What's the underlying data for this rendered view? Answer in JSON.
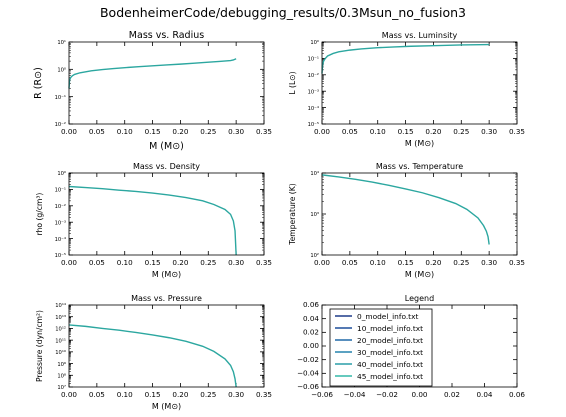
{
  "figure": {
    "suptitle": "BodenheimerCode/debugging_results/0.3Msun_no_fusion3",
    "colors": {
      "background": "#ffffff",
      "axes": "#000000"
    }
  },
  "chart_data": [
    {
      "type": "line",
      "title": "Mass vs. Radius",
      "xlabel": "M ($M_{\\odot}$)",
      "ylabel": "R ($R_{\\odot}$)",
      "xlim": [
        0,
        0.35
      ],
      "ylim": [
        0.01,
        10
      ],
      "yscale": "log",
      "xticks": [
        "0.00",
        "0.05",
        "0.10",
        "0.15",
        "0.20",
        "0.25",
        "0.30",
        "0.35"
      ],
      "yticks": [
        {
          "v": 0.01,
          "label": "10⁻²"
        },
        {
          "v": 0.1,
          "label": "10⁻¹"
        },
        {
          "v": 1,
          "label": "10⁰"
        },
        {
          "v": 10,
          "label": "10¹"
        }
      ],
      "series_color": "#2ca7a0",
      "x": [
        0.0,
        0.001,
        0.003,
        0.006,
        0.01,
        0.02,
        0.04,
        0.06,
        0.08,
        0.1,
        0.125,
        0.15,
        0.175,
        0.2,
        0.225,
        0.25,
        0.27,
        0.29,
        0.295,
        0.3
      ],
      "y": [
        0.2,
        0.4,
        0.5,
        0.58,
        0.65,
        0.75,
        0.88,
        0.98,
        1.07,
        1.15,
        1.25,
        1.35,
        1.45,
        1.55,
        1.68,
        1.82,
        1.95,
        2.1,
        2.2,
        2.45
      ]
    },
    {
      "type": "line",
      "title": "Mass vs. Luminsity",
      "xlabel": "M ($M_{\\odot}$)",
      "ylabel": "L ($L_{\\odot}$)",
      "xlim": [
        0,
        0.35
      ],
      "ylim": [
        1e-05,
        1
      ],
      "yscale": "log",
      "xticks": [
        "0.00",
        "0.05",
        "0.10",
        "0.15",
        "0.20",
        "0.25",
        "0.30",
        "0.35"
      ],
      "yticks": [
        {
          "v": 1e-05,
          "label": "10⁻⁵"
        },
        {
          "v": 0.0001,
          "label": "10⁻⁴"
        },
        {
          "v": 0.001,
          "label": "10⁻³"
        },
        {
          "v": 0.01,
          "label": "10⁻²"
        },
        {
          "v": 0.1,
          "label": "10⁻¹"
        },
        {
          "v": 1,
          "label": "10⁰"
        }
      ],
      "series_color": "#2ca7a0",
      "x": [
        0.0,
        0.001,
        0.003,
        0.006,
        0.01,
        0.02,
        0.03,
        0.05,
        0.07,
        0.1,
        0.13,
        0.16,
        0.2,
        0.25,
        0.3
      ],
      "y": [
        0.012,
        0.04,
        0.07,
        0.1,
        0.14,
        0.2,
        0.25,
        0.32,
        0.38,
        0.45,
        0.5,
        0.55,
        0.6,
        0.66,
        0.7
      ]
    },
    {
      "type": "line",
      "title": "Mass vs. Density",
      "xlabel": "M ($M_{\\odot}$)",
      "ylabel": "rho (g/$cm^3$)",
      "xlim": [
        0,
        0.35
      ],
      "ylim": [
        1e-05,
        1
      ],
      "yscale": "log",
      "xticks": [
        "0.00",
        "0.05",
        "0.10",
        "0.15",
        "0.20",
        "0.25",
        "0.30",
        "0.35"
      ],
      "yticks": [
        {
          "v": 1e-05,
          "label": "10⁻⁵"
        },
        {
          "v": 0.0001,
          "label": "10⁻⁴"
        },
        {
          "v": 0.001,
          "label": "10⁻³"
        },
        {
          "v": 0.01,
          "label": "10⁻²"
        },
        {
          "v": 0.1,
          "label": "10⁻¹"
        },
        {
          "v": 1,
          "label": "10⁰"
        }
      ],
      "series_color": "#2ca7a0",
      "x": [
        0.0,
        0.03,
        0.06,
        0.09,
        0.12,
        0.15,
        0.18,
        0.21,
        0.24,
        0.26,
        0.28,
        0.29,
        0.295,
        0.298,
        0.3
      ],
      "y": [
        0.15,
        0.13,
        0.11,
        0.09,
        0.075,
        0.06,
        0.045,
        0.032,
        0.02,
        0.012,
        0.006,
        0.003,
        0.0012,
        0.0003,
        1e-05
      ]
    },
    {
      "type": "line",
      "title": "Mass vs. Temperature",
      "xlabel": "M ($M_{\\odot}$)",
      "ylabel": "Temperature (K)",
      "xlim": [
        0,
        0.35
      ],
      "ylim": [
        100,
        10000
      ],
      "yscale": "log",
      "xticks": [
        "0.00",
        "0.05",
        "0.10",
        "0.15",
        "0.20",
        "0.25",
        "0.30",
        "0.35"
      ],
      "yticks": [
        {
          "v": 100,
          "label": "10²"
        },
        {
          "v": 1000,
          "label": "10³"
        },
        {
          "v": 10000,
          "label": "10⁴"
        }
      ],
      "series_color": "#2ca7a0",
      "x": [
        0.0,
        0.03,
        0.06,
        0.09,
        0.12,
        0.15,
        0.18,
        0.21,
        0.24,
        0.26,
        0.28,
        0.29,
        0.295,
        0.298,
        0.3
      ],
      "y": [
        9000,
        8000,
        7000,
        6000,
        5000,
        4100,
        3300,
        2500,
        1800,
        1300,
        800,
        520,
        380,
        280,
        180
      ]
    },
    {
      "type": "line",
      "title": "Mass vs. Pressure",
      "xlabel": "M ($M_{\\odot}$)",
      "ylabel": "Pressure (dyn/$cm^2$)",
      "xlim": [
        0,
        0.35
      ],
      "ylim": [
        10000000,
        100000000000000
      ],
      "yscale": "log",
      "xticks": [
        "0.00",
        "0.05",
        "0.10",
        "0.15",
        "0.20",
        "0.25",
        "0.30",
        "0.35"
      ],
      "yticks": [
        {
          "v": 10000000,
          "label": "10⁷"
        },
        {
          "v": 100000000,
          "label": "10⁸"
        },
        {
          "v": 1000000000,
          "label": "10⁹"
        },
        {
          "v": 10000000000,
          "label": "10¹⁰"
        },
        {
          "v": 100000000000,
          "label": "10¹¹"
        },
        {
          "v": 1000000000000,
          "label": "10¹²"
        },
        {
          "v": 10000000000000,
          "label": "10¹³"
        },
        {
          "v": 100000000000000,
          "label": "10¹⁴"
        }
      ],
      "series_color": "#2ca7a0",
      "x": [
        0.0,
        0.03,
        0.06,
        0.09,
        0.12,
        0.15,
        0.18,
        0.21,
        0.24,
        0.26,
        0.28,
        0.29,
        0.295,
        0.298,
        0.3
      ],
      "y": [
        2000000000000,
        1500000000000,
        1000000000000,
        700000000000,
        450000000000,
        280000000000,
        160000000000,
        80000000000,
        30000000000,
        11000000000,
        2500000000,
        700000000,
        200000000,
        50000000,
        10000000
      ]
    },
    {
      "type": "line",
      "title": "Legend",
      "xlim": [
        -0.06,
        0.06
      ],
      "ylim": [
        -0.06,
        0.06
      ],
      "xticks": [
        "−0.06",
        "−0.04",
        "−0.02",
        "0.00",
        "0.02",
        "0.04",
        "0.06"
      ],
      "yticks": [
        {
          "v": -0.06,
          "label": "−0.06"
        },
        {
          "v": -0.04,
          "label": "−0.04"
        },
        {
          "v": -0.02,
          "label": "−0.02"
        },
        {
          "v": 0.0,
          "label": "0.00"
        },
        {
          "v": 0.02,
          "label": "0.02"
        },
        {
          "v": 0.04,
          "label": "0.04"
        },
        {
          "v": 0.06,
          "label": "0.06"
        }
      ],
      "legend_placement": "upper-left",
      "series": [
        {
          "name": "0_model_info.txt",
          "color": "#1f3b8a"
        },
        {
          "name": "10_model_info.txt",
          "color": "#1d4f9c"
        },
        {
          "name": "20_model_info.txt",
          "color": "#206aa8"
        },
        {
          "name": "30_model_info.txt",
          "color": "#2584ad"
        },
        {
          "name": "40_model_info.txt",
          "color": "#2a9da9"
        },
        {
          "name": "45_model_info.txt",
          "color": "#33b8a8"
        }
      ]
    }
  ]
}
